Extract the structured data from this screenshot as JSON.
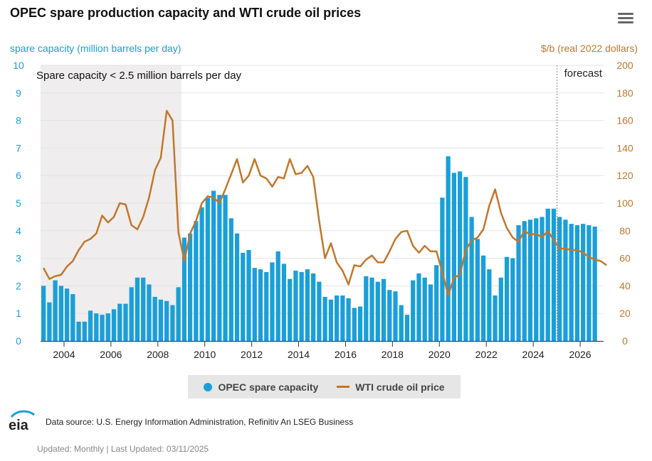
{
  "header": {
    "title": "OPEC spare production capacity and WTI crude oil prices",
    "menu_icon": "hamburger-menu-icon"
  },
  "chart_data": {
    "type": "bar+line",
    "title": "OPEC spare production capacity and WTI crude oil prices",
    "ylabel_left": "spare capacity (million barrels per day)",
    "ylabel_right": "$/b (real 2022 dollars)",
    "ylim_left": [
      0,
      10
    ],
    "ylim_right": [
      0,
      200
    ],
    "yticks_left": [
      "0",
      "1",
      "2",
      "3",
      "4",
      "5",
      "6",
      "7",
      "8",
      "9",
      "10"
    ],
    "yticks_right": [
      "0",
      "20",
      "40",
      "60",
      "80",
      "100",
      "120",
      "140",
      "160",
      "180",
      "200"
    ],
    "x_range": [
      2003.0,
      2027.0
    ],
    "xticks": [
      "2004",
      "2006",
      "2008",
      "2010",
      "2012",
      "2014",
      "2016",
      "2018",
      "2020",
      "2022",
      "2024",
      "2026"
    ],
    "shaded_region": {
      "from": 2003.0,
      "to": 2009.0,
      "label": "Spare capacity < 2.5 million barrels per day"
    },
    "forecast": {
      "start": 2025.0,
      "label": "forecast"
    },
    "colors": {
      "bars": "#1a9fd8",
      "line": "#c1772b",
      "shade": "#efedee",
      "grid": "#e3e3e3"
    },
    "series": [
      {
        "name": "OPEC spare capacity",
        "type": "bar",
        "start": 2003.0,
        "step": 0.25,
        "values": [
          2.0,
          1.4,
          2.2,
          2.0,
          1.9,
          1.7,
          0.7,
          0.7,
          1.1,
          1.0,
          0.95,
          1.0,
          1.15,
          1.35,
          1.35,
          1.95,
          2.3,
          2.3,
          2.05,
          1.6,
          1.5,
          1.45,
          1.3,
          1.95,
          3.75,
          3.9,
          4.35,
          4.85,
          5.2,
          5.45,
          5.3,
          5.3,
          4.45,
          3.9,
          3.2,
          3.3,
          2.65,
          2.6,
          2.5,
          2.85,
          3.25,
          2.8,
          2.25,
          2.55,
          2.5,
          2.6,
          2.45,
          2.15,
          1.6,
          1.5,
          1.65,
          1.65,
          1.55,
          1.2,
          1.25,
          2.35,
          2.3,
          2.15,
          2.25,
          1.85,
          1.8,
          1.3,
          0.95,
          2.2,
          2.45,
          2.3,
          2.05,
          2.75,
          5.2,
          6.7,
          6.1,
          6.15,
          5.95,
          4.5,
          3.7,
          3.1,
          2.6,
          1.65,
          2.3,
          3.05,
          3.0,
          4.2,
          4.35,
          4.4,
          4.45,
          4.5,
          4.8,
          4.8,
          4.5,
          4.4,
          4.25,
          4.2,
          4.25,
          4.2,
          4.15
        ]
      },
      {
        "name": "WTI crude oil price",
        "type": "line",
        "start": 2003.0,
        "step": 0.25,
        "values": [
          53,
          45,
          47,
          48,
          54,
          58,
          66,
          72,
          74,
          78,
          91,
          86,
          90,
          100,
          99,
          84,
          81,
          90,
          104,
          124,
          133,
          167,
          160,
          79,
          58,
          78,
          87,
          100,
          105,
          104,
          100,
          110,
          121,
          132,
          115,
          120,
          132,
          120,
          118,
          112,
          119,
          118,
          132,
          121,
          122,
          127,
          119,
          87,
          60,
          71,
          57,
          51,
          41,
          55,
          54,
          59,
          62,
          57,
          57,
          65,
          74,
          79,
          80,
          69,
          64,
          69,
          65,
          65,
          50,
          33,
          46,
          48,
          66,
          73,
          75,
          81,
          98,
          110,
          93,
          82,
          75,
          72,
          80,
          77,
          78,
          75,
          80,
          73,
          67,
          67,
          66,
          66,
          64,
          61,
          59,
          58,
          55
        ]
      }
    ]
  },
  "legend": {
    "items": [
      {
        "label": "OPEC spare capacity",
        "marker": "circle-marker-icon",
        "color": "#1a9fd8"
      },
      {
        "label": "WTI crude oil price",
        "marker": "line-marker-icon",
        "color": "#c1772b"
      }
    ]
  },
  "footer": {
    "logo_text": "eia",
    "source": "Data source: U.S. Energy Information Administration, Refinitiv An LSEG Business",
    "updated": "Updated: Monthly | Last Updated: 03/11/2025"
  }
}
